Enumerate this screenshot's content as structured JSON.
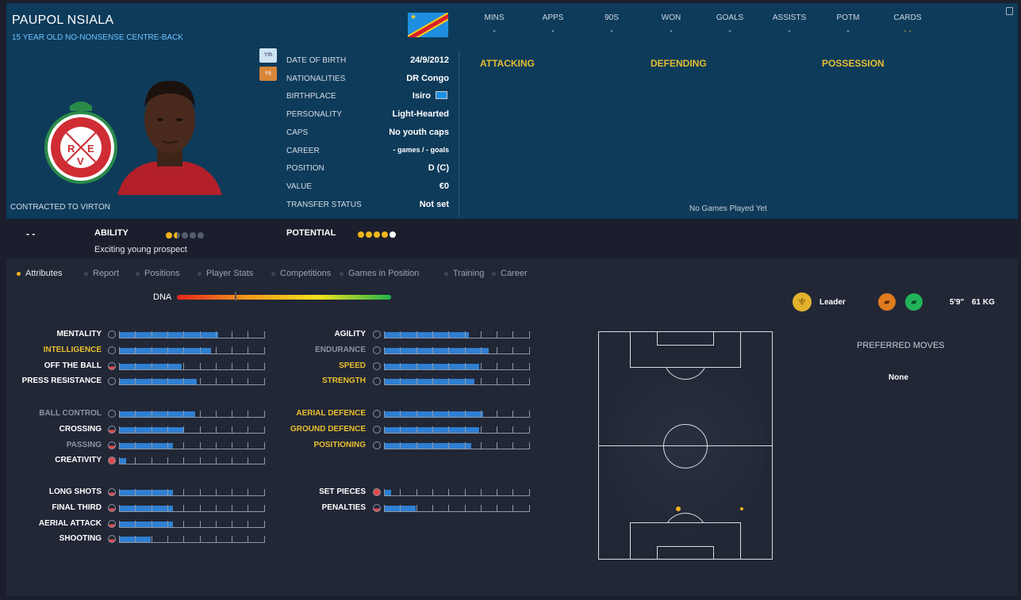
{
  "player": {
    "name": "PAUPOL NSIALA",
    "subtitle": "15 YEAR OLD NO-NONSENSE CENTRE-BACK",
    "contract": "CONTRACTED TO VIRTON"
  },
  "badges": {
    "youth": "Yth",
    "injury": "Inj"
  },
  "info": [
    {
      "label": "DATE OF BIRTH",
      "value": "24/9/2012"
    },
    {
      "label": "NATIONALITIES",
      "value": "DR Congo"
    },
    {
      "label": "BIRTHPLACE",
      "value": "Isiro"
    },
    {
      "label": "PERSONALITY",
      "value": "Light-Hearted"
    },
    {
      "label": "CAPS",
      "value": "No youth caps"
    },
    {
      "label": "CAREER",
      "value": "- games /    - goals"
    },
    {
      "label": "POSITION",
      "value": "D (C)"
    },
    {
      "label": "VALUE",
      "value": "€0"
    },
    {
      "label": "TRANSFER STATUS",
      "value": "Not set"
    }
  ],
  "stats": [
    {
      "label": "MINS",
      "value": "-"
    },
    {
      "label": "APPS",
      "value": "-"
    },
    {
      "label": "90S",
      "value": "-"
    },
    {
      "label": "WON",
      "value": "-"
    },
    {
      "label": "GOALS",
      "value": "-"
    },
    {
      "label": "ASSISTS",
      "value": "-"
    },
    {
      "label": "POTM",
      "value": "-"
    },
    {
      "label": "CARDS",
      "value": "- -"
    }
  ],
  "sections": {
    "attacking": "ATTACKING",
    "defending": "DEFENDING",
    "possession": "POSSESSION",
    "empty": "No Games Played Yet"
  },
  "rating": {
    "dash": "- -",
    "ability_label": "ABILITY",
    "ability_stars": 1.5,
    "potential_label": "POTENTIAL",
    "potential_stars": 4,
    "description": "Exciting young prospect"
  },
  "tabs": [
    "Attributes",
    "Report",
    "Positions",
    "Player Stats",
    "Competitions",
    "Games in Position",
    "Training",
    "Career"
  ],
  "dna_label": "DNA",
  "dna_level": 0.27,
  "trait": "Leader",
  "physical": {
    "height": "5'9\"",
    "weight": "61 KG"
  },
  "preferred_moves": {
    "title": "PREFERRED MOVES",
    "value": "None"
  },
  "attributes_left": [
    [
      {
        "label": "MENTALITY",
        "v": 0.68,
        "c": "w"
      },
      {
        "label": "INTELLIGENCE",
        "v": 0.63,
        "c": "g"
      },
      {
        "label": "OFF THE BALL",
        "v": 0.43,
        "c": "w"
      },
      {
        "label": "PRESS RESISTANCE",
        "v": 0.53,
        "c": "w"
      }
    ],
    [
      {
        "label": "BALL CONTROL",
        "v": 0.52,
        "c": "d"
      },
      {
        "label": "CROSSING",
        "v": 0.44,
        "c": "w"
      },
      {
        "label": "PASSING",
        "v": 0.37,
        "c": "d"
      },
      {
        "label": "CREATIVITY",
        "v": 0.05,
        "c": "w"
      }
    ],
    [
      {
        "label": "LONG SHOTS",
        "v": 0.37,
        "c": "w"
      },
      {
        "label": "FINAL THIRD",
        "v": 0.37,
        "c": "w"
      },
      {
        "label": "AERIAL ATTACK",
        "v": 0.37,
        "c": "w"
      },
      {
        "label": "SHOOTING",
        "v": 0.22,
        "c": "w"
      }
    ]
  ],
  "attributes_right": [
    [
      {
        "label": "AGILITY",
        "v": 0.58,
        "c": "w"
      },
      {
        "label": "ENDURANCE",
        "v": 0.72,
        "c": "d"
      },
      {
        "label": "SPEED",
        "v": 0.65,
        "c": "g"
      },
      {
        "label": "STRENGTH",
        "v": 0.62,
        "c": "g"
      }
    ],
    [
      {
        "label": "AERIAL DEFENCE",
        "v": 0.68,
        "c": "g"
      },
      {
        "label": "GROUND DEFENCE",
        "v": 0.65,
        "c": "g"
      },
      {
        "label": "POSITIONING",
        "v": 0.6,
        "c": "g"
      }
    ],
    [
      {
        "label": "SET PIECES",
        "v": 0.05,
        "c": "w"
      },
      {
        "label": "PENALTIES",
        "v": 0.22,
        "c": "w"
      }
    ]
  ],
  "colors": {
    "accent": "#e9bf2e",
    "bar": "#2f7fd2",
    "header": "#0e3b5a"
  }
}
